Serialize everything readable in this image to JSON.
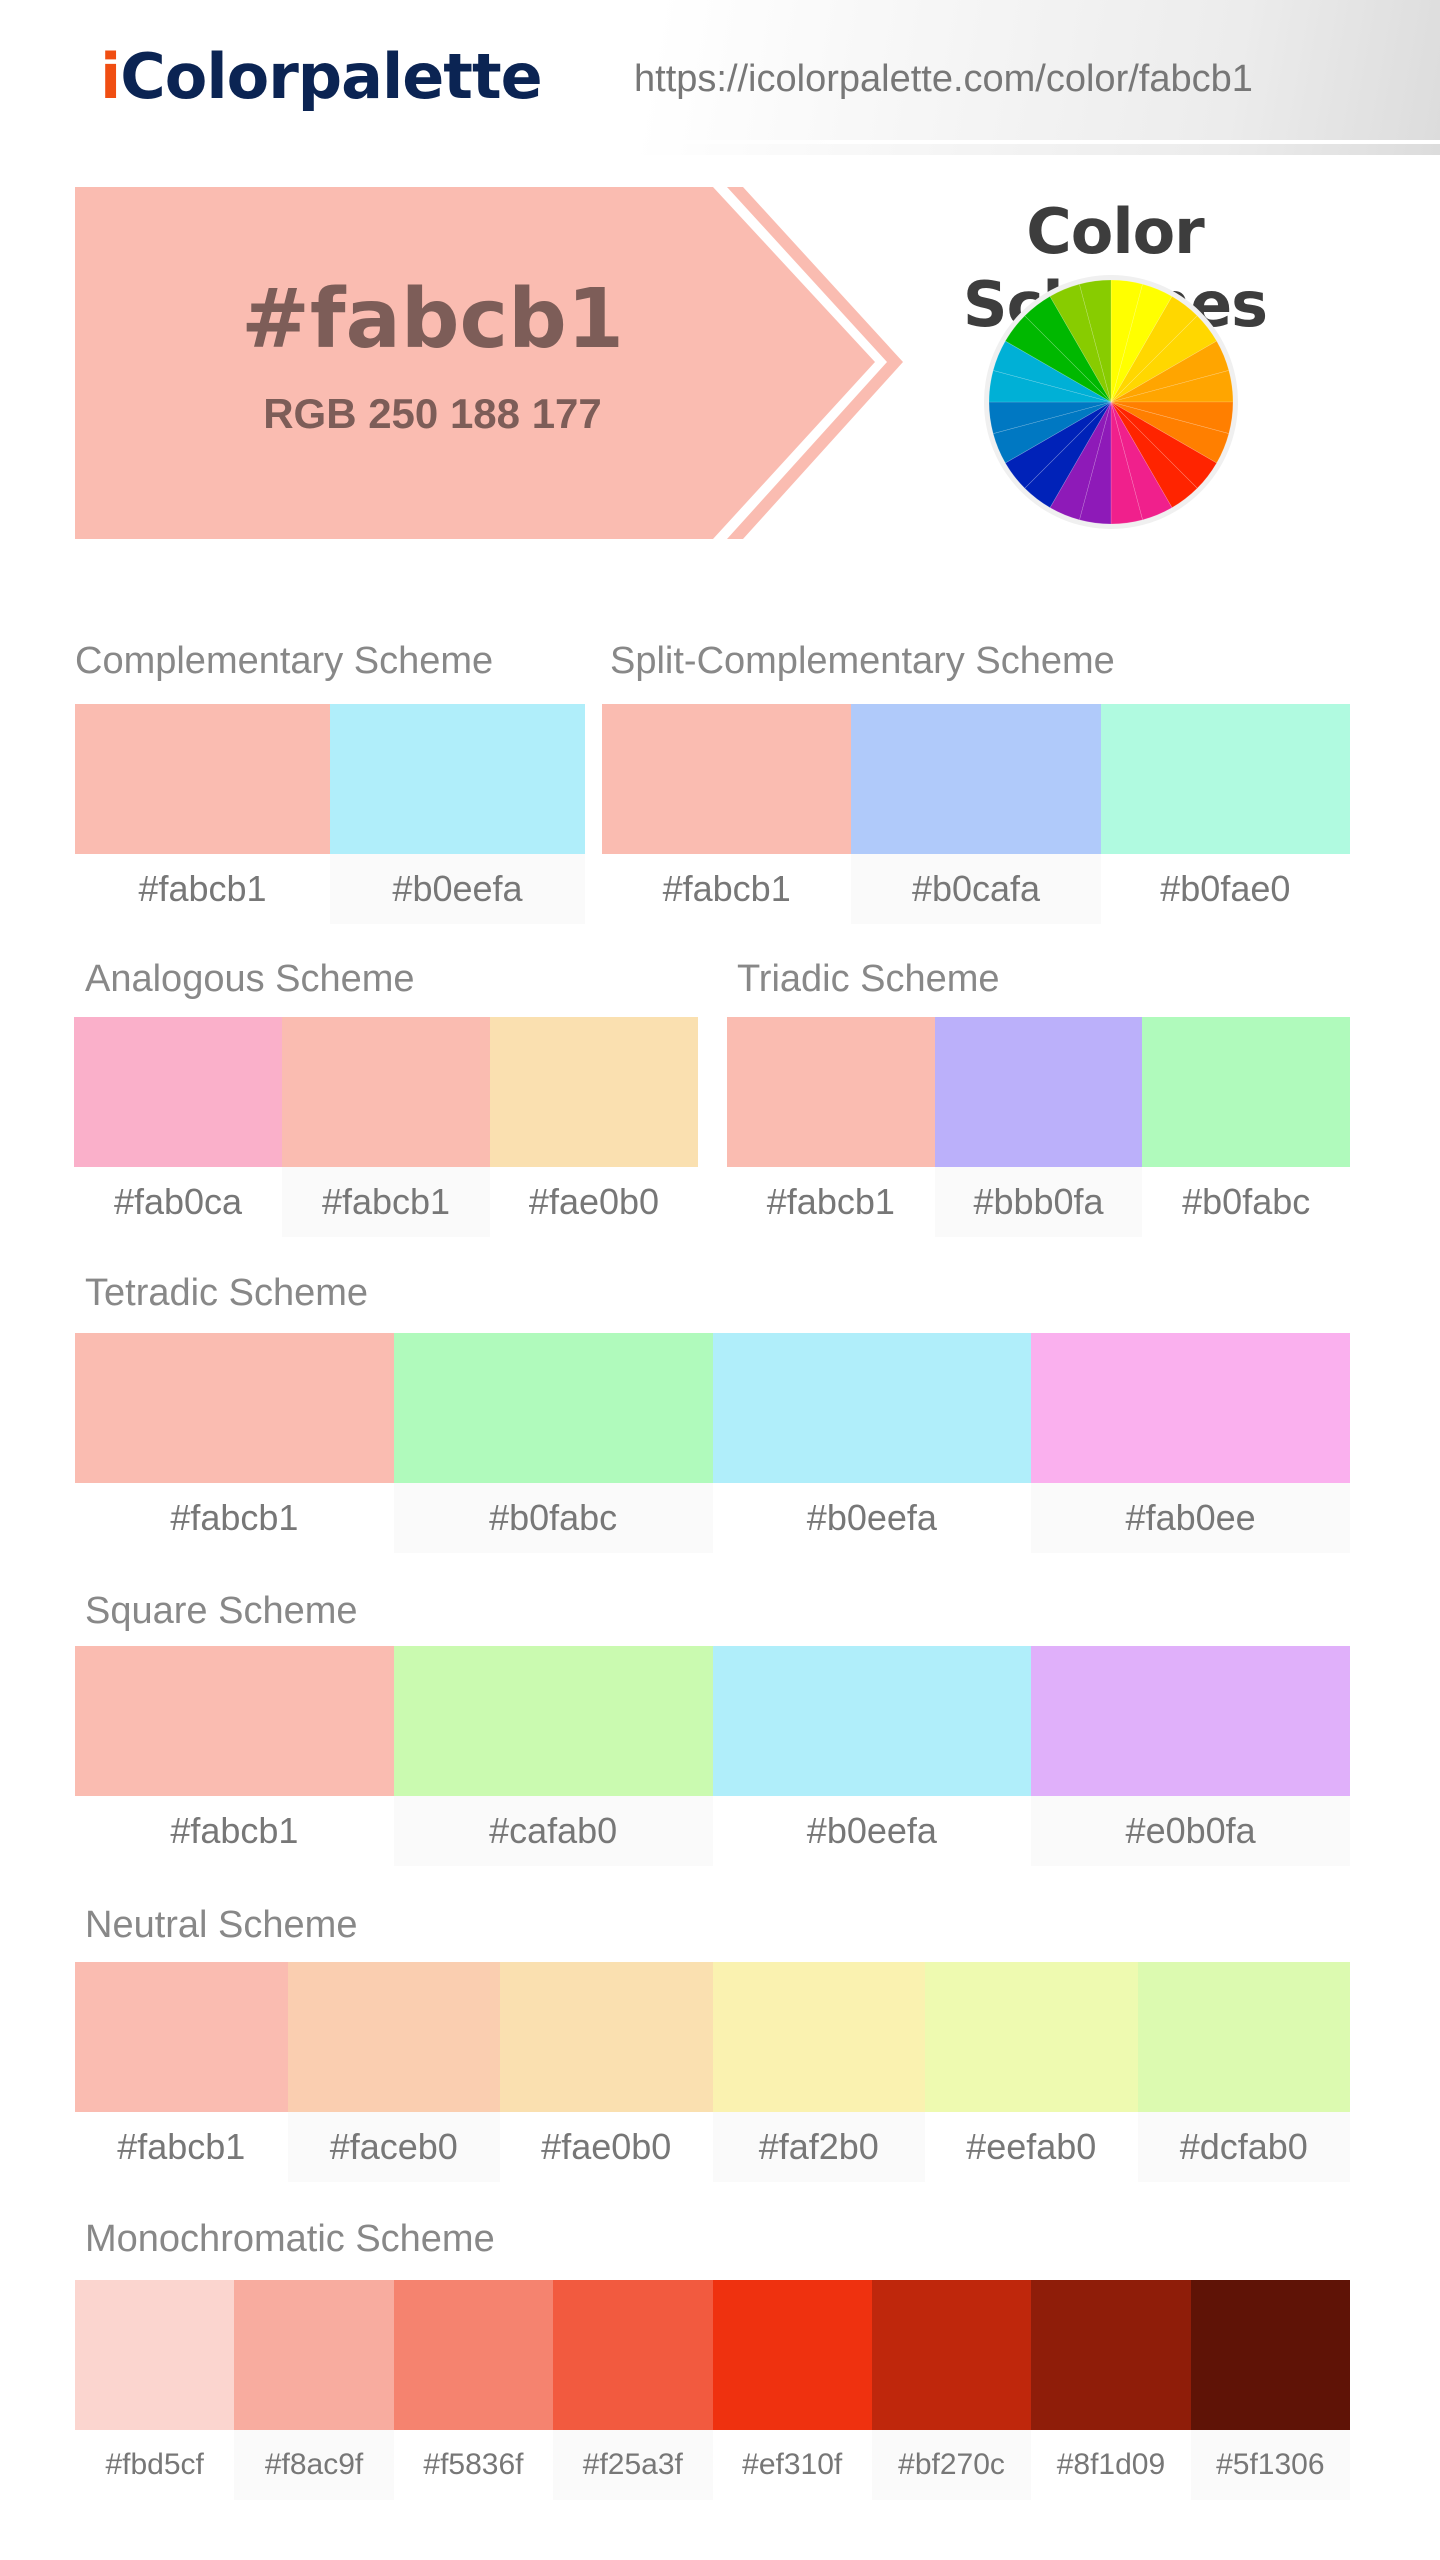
{
  "header": {
    "logo_prefix": "i",
    "logo_rest": "Colorpalette",
    "url": "https://icolorpalette.com/color/fabcb1"
  },
  "hero": {
    "hex": "#fabcb1",
    "rgb": "RGB 250 188 177",
    "color": "#fabcb1",
    "title": "Color Schemes",
    "wheel_colors": [
      "#ffff00",
      "#ffd700",
      "#ffa500",
      "#ff7f00",
      "#ff2400",
      "#f0208c",
      "#8e1ab8",
      "#0022b8",
      "#0078c2",
      "#00b0d6",
      "#00b800",
      "#88cc00"
    ]
  },
  "schemes": [
    {
      "title": "Complementary Scheme",
      "colors": [
        "#fabcb1",
        "#b0eefa"
      ]
    },
    {
      "title": "Split-Complementary Scheme",
      "colors": [
        "#fabcb1",
        "#b0cafa",
        "#b0fae0"
      ]
    },
    {
      "title": "Analogous Scheme",
      "colors": [
        "#fab0ca",
        "#fabcb1",
        "#fae0b0"
      ]
    },
    {
      "title": "Triadic Scheme",
      "colors": [
        "#fabcb1",
        "#bbb0fa",
        "#b0fabc"
      ]
    },
    {
      "title": "Tetradic Scheme",
      "colors": [
        "#fabcb1",
        "#b0fabc",
        "#b0eefa",
        "#fab0ee"
      ]
    },
    {
      "title": "Square Scheme",
      "colors": [
        "#fabcb1",
        "#cafab0",
        "#b0eefa",
        "#e0b0fa"
      ]
    },
    {
      "title": "Neutral Scheme",
      "colors": [
        "#fabcb1",
        "#faceb0",
        "#fae0b0",
        "#faf2b0",
        "#eefab0",
        "#dcfab0"
      ]
    },
    {
      "title": "Monochromatic Scheme",
      "colors": [
        "#fbd5cf",
        "#f8ac9f",
        "#f5836f",
        "#f25a3f",
        "#ef310f",
        "#bf270c",
        "#8f1d09",
        "#5f1306"
      ]
    }
  ]
}
